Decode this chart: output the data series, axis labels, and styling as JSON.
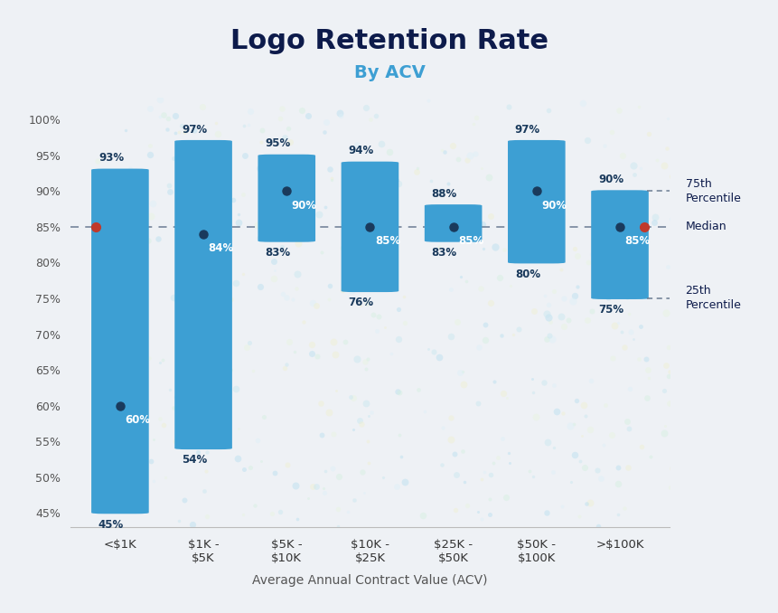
{
  "title": "Logo Retention Rate",
  "subtitle": "By ACV",
  "xlabel": "Average Annual Contract Value (ACV)",
  "background_color": "#eef1f5",
  "categories": [
    "<$1K",
    "$1K -\n$5K",
    "$5K -\n$10K",
    "$10K -\n$25K",
    "$25K -\n$50K",
    "$50K -\n$100K",
    ">$100K"
  ],
  "p25": [
    45,
    54,
    83,
    76,
    83,
    80,
    75
  ],
  "median": [
    60,
    84,
    90,
    85,
    85,
    90,
    85
  ],
  "p75": [
    93,
    97,
    95,
    94,
    88,
    97,
    90
  ],
  "bar_color": "#3d9fd3",
  "median_dot_color": "#1a3a5c",
  "median_line_color": "#c0392b",
  "median_line_value": 85,
  "p75_last": 90,
  "p25_last": 75,
  "ylim": [
    43,
    103
  ],
  "yticks": [
    45,
    50,
    55,
    60,
    65,
    70,
    75,
    80,
    85,
    90,
    95,
    100
  ],
  "ytick_labels": [
    "45%",
    "50%",
    "55%",
    "60%",
    "65%",
    "70%",
    "75%",
    "80%",
    "85%",
    "90%",
    "95%",
    "100%"
  ],
  "title_color": "#0d1b4b",
  "subtitle_color": "#3d9fd3",
  "axis_label_color": "#555555",
  "legend_75th": "75th\nPercentile",
  "legend_median": "Median",
  "legend_25th": "25th\nPercentile",
  "label_outside_color": "#1a3a5c",
  "label_inside_color": "#ffffff"
}
